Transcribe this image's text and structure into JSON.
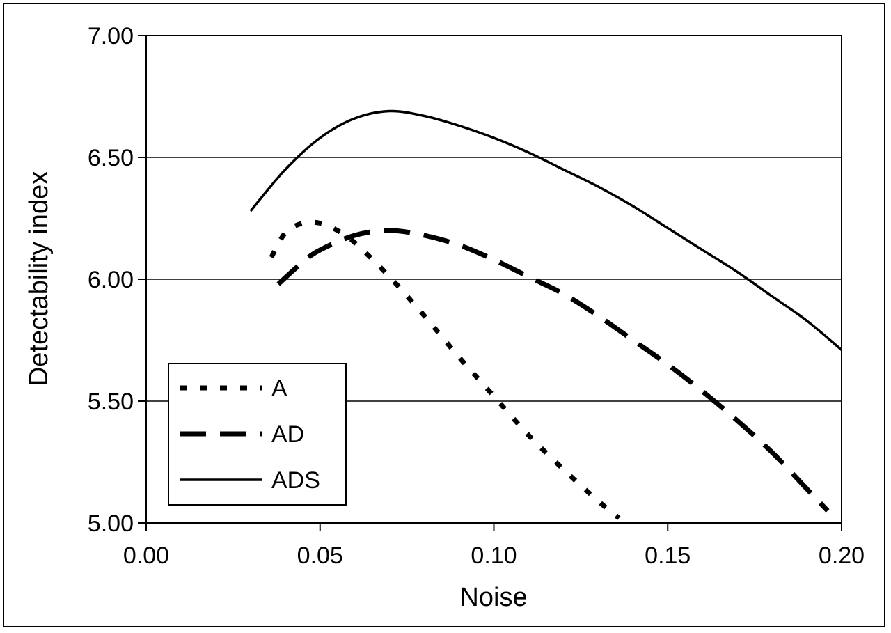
{
  "chart_data": {
    "type": "line",
    "title": "",
    "xlabel": "Noise",
    "ylabel": "Detectability index",
    "xlim": [
      0.0,
      0.2
    ],
    "ylim": [
      5.0,
      7.0
    ],
    "xticks": [
      "0.00",
      "0.05",
      "0.10",
      "0.15",
      "0.20"
    ],
    "yticks": [
      "5.00",
      "5.50",
      "6.00",
      "6.50",
      "7.00"
    ],
    "grid": "horizontal",
    "legend_position": "bottom-left",
    "series": [
      {
        "name": "A",
        "style": "dotted",
        "x": [
          0.036,
          0.04,
          0.045,
          0.05,
          0.055,
          0.06,
          0.07,
          0.08,
          0.09,
          0.1,
          0.11,
          0.12,
          0.13,
          0.136
        ],
        "y": [
          6.09,
          6.19,
          6.23,
          6.23,
          6.2,
          6.15,
          6.01,
          5.85,
          5.68,
          5.52,
          5.36,
          5.22,
          5.09,
          5.02
        ]
      },
      {
        "name": "AD",
        "style": "dashed",
        "x": [
          0.038,
          0.045,
          0.05,
          0.06,
          0.07,
          0.08,
          0.09,
          0.1,
          0.11,
          0.12,
          0.13,
          0.14,
          0.15,
          0.16,
          0.17,
          0.18,
          0.19,
          0.196
        ],
        "y": [
          5.98,
          6.07,
          6.12,
          6.18,
          6.2,
          6.18,
          6.14,
          6.08,
          6.01,
          5.94,
          5.85,
          5.75,
          5.65,
          5.54,
          5.42,
          5.29,
          5.14,
          5.05
        ]
      },
      {
        "name": "ADS",
        "style": "solid",
        "x": [
          0.03,
          0.04,
          0.05,
          0.06,
          0.07,
          0.08,
          0.09,
          0.1,
          0.11,
          0.12,
          0.13,
          0.14,
          0.15,
          0.16,
          0.17,
          0.18,
          0.19,
          0.2
        ],
        "y": [
          6.28,
          6.45,
          6.58,
          6.66,
          6.69,
          6.67,
          6.63,
          6.58,
          6.52,
          6.45,
          6.38,
          6.3,
          6.21,
          6.12,
          6.03,
          5.93,
          5.83,
          5.71
        ]
      }
    ]
  }
}
